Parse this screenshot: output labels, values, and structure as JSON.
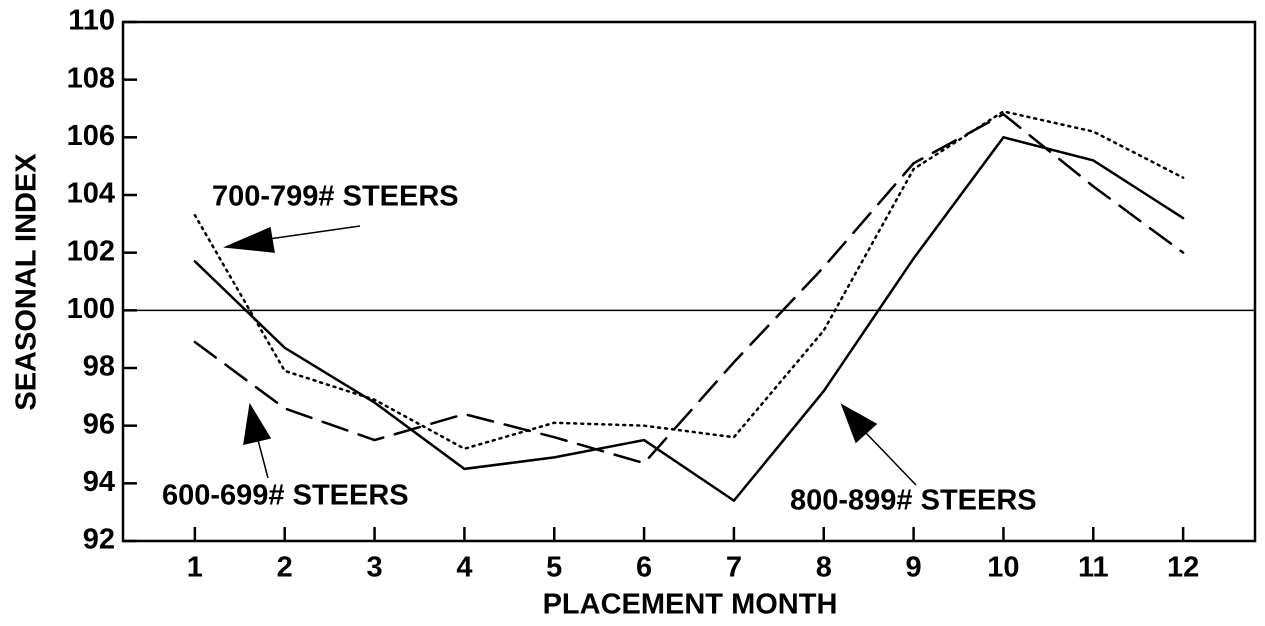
{
  "chart_data": {
    "type": "line",
    "x_label": "PLACEMENT MONTH",
    "y_label": "SEASONAL INDEX",
    "x": [
      1,
      2,
      3,
      4,
      5,
      6,
      7,
      8,
      9,
      10,
      11,
      12
    ],
    "xlim": [
      0.2,
      12.8
    ],
    "xticks": [
      1,
      2,
      3,
      4,
      5,
      6,
      7,
      8,
      9,
      10,
      11,
      12
    ],
    "ylim": [
      92,
      110
    ],
    "yticks": [
      92,
      94,
      96,
      98,
      100,
      102,
      104,
      106,
      108,
      110
    ],
    "reference_line": 100,
    "series": [
      {
        "name": "800-899# STEERS",
        "color": "#000000",
        "line_style": "solid",
        "values": [
          101.7,
          98.7,
          96.8,
          94.5,
          94.9,
          95.5,
          93.4,
          97.2,
          101.8,
          106.0,
          105.2,
          103.2
        ]
      },
      {
        "name": "700-799# STEERS",
        "color": "#000000",
        "line_style": "dotted",
        "values": [
          103.3,
          97.9,
          96.9,
          95.2,
          96.1,
          96.0,
          95.6,
          99.3,
          104.9,
          106.9,
          106.2,
          104.6
        ]
      },
      {
        "name": "600-699# STEERS",
        "color": "#000000",
        "line_style": "dashed",
        "values": [
          98.9,
          96.6,
          95.5,
          96.4,
          95.6,
          94.7,
          98.2,
          101.5,
          105.1,
          106.8,
          104.3,
          102.0
        ]
      }
    ]
  }
}
